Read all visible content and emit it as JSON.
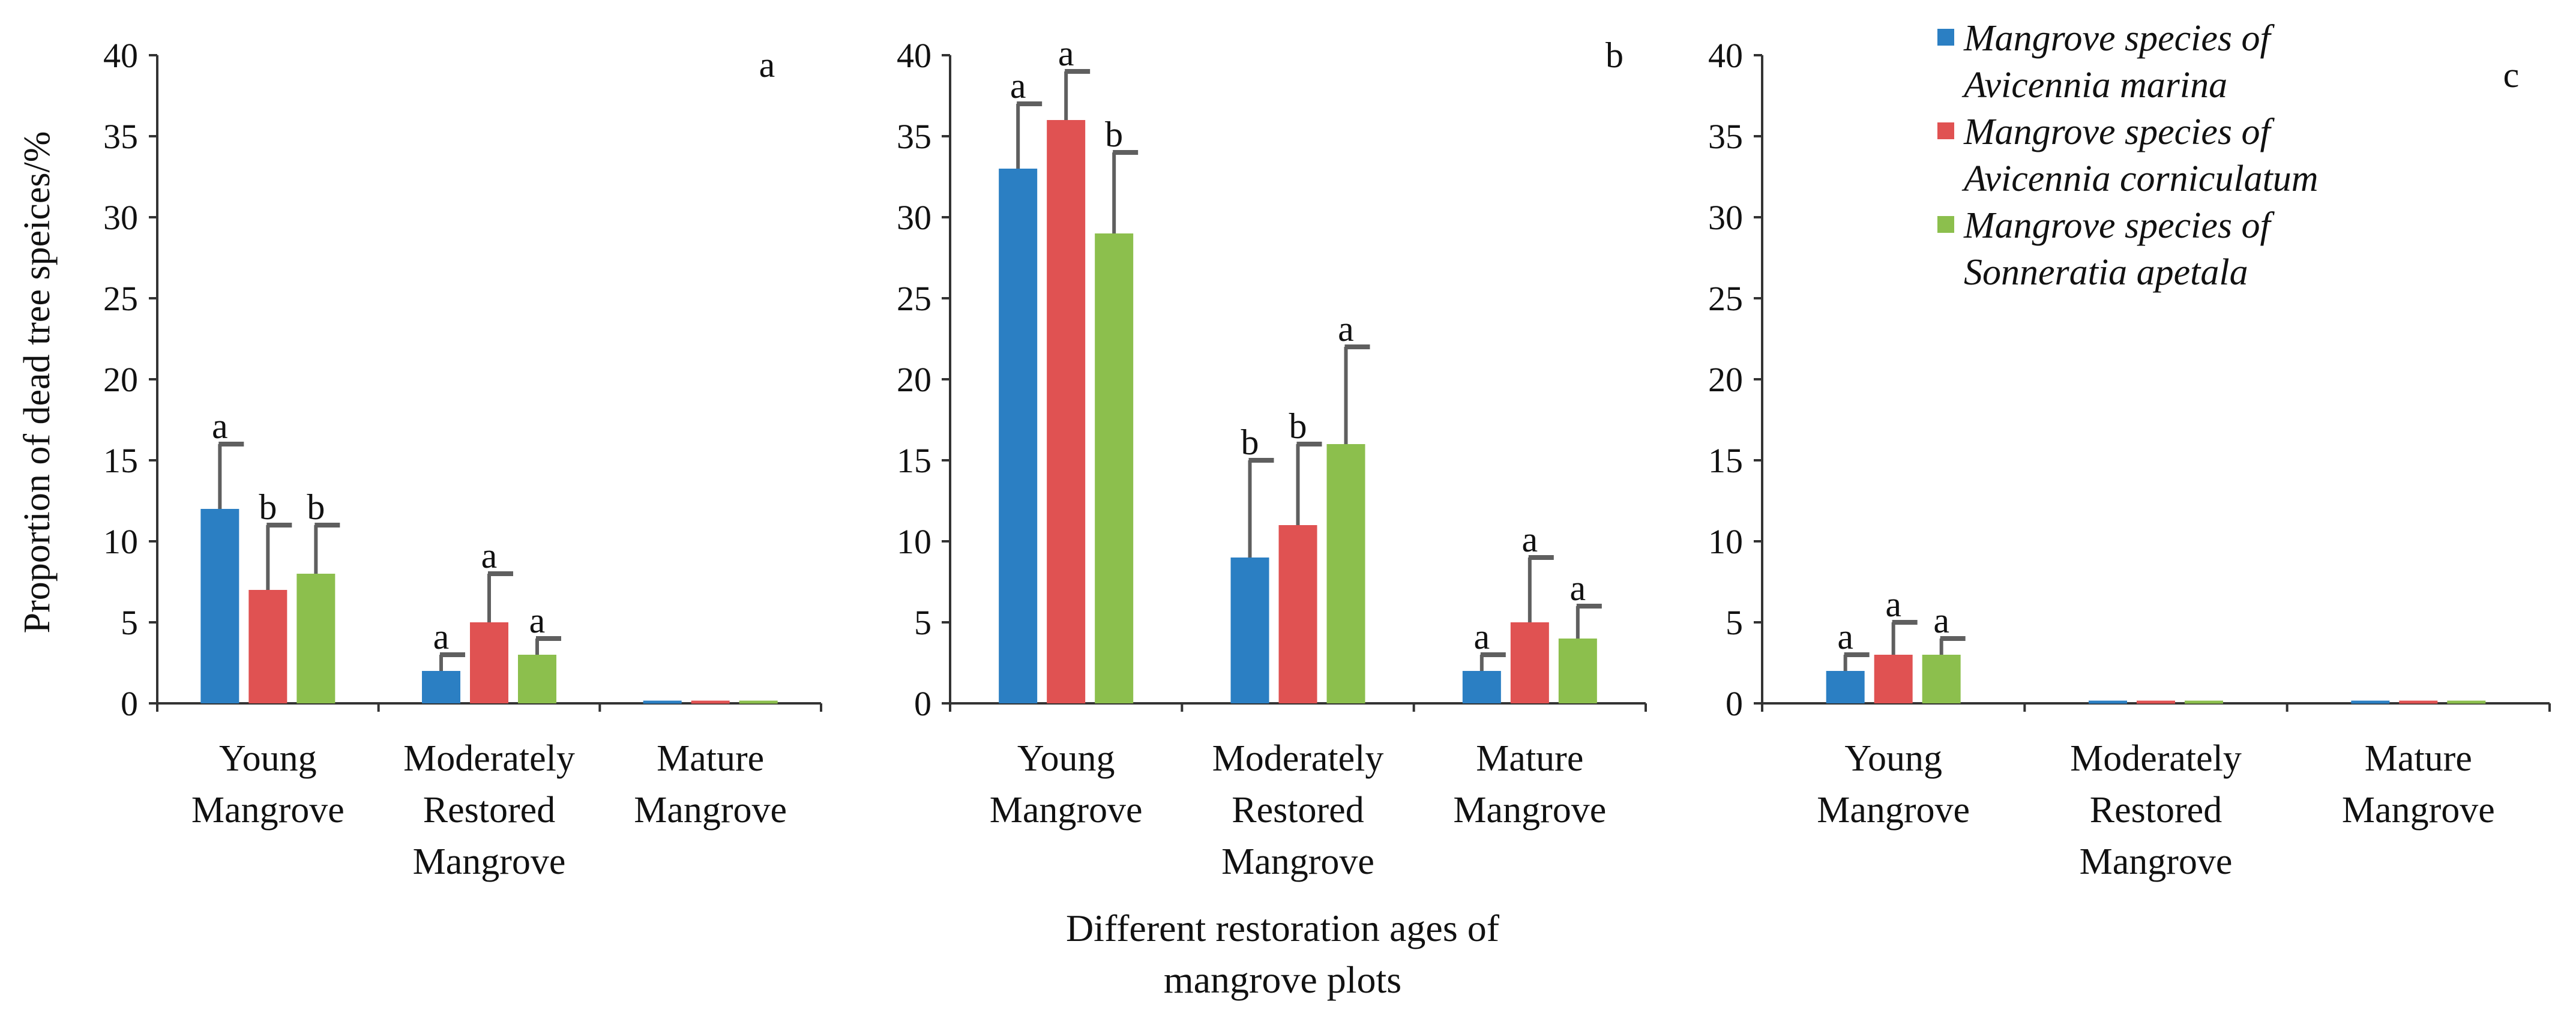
{
  "chart_data": [
    {
      "type": "bar",
      "panel_label": "a",
      "categories": [
        [
          "Young",
          "Mangrove"
        ],
        [
          "Moderately",
          "Restored",
          "Mangrove"
        ],
        [
          "Mature",
          "Mangrove"
        ]
      ],
      "ylim": [
        0,
        40
      ],
      "yticks": [
        "0",
        "5",
        "10",
        "15",
        "20",
        "25",
        "30",
        "35",
        "40"
      ],
      "series": [
        {
          "name": "Mangrove species of Avicennia marina",
          "color": "#2b7fc3",
          "values": [
            12,
            2,
            0
          ],
          "errors": [
            4,
            1,
            0
          ],
          "letters": [
            "a",
            "a",
            ""
          ]
        },
        {
          "name": "Mangrove species of Avicennia corniculatum",
          "color": "#e05252",
          "values": [
            7,
            5,
            0
          ],
          "errors": [
            4,
            3,
            0
          ],
          "letters": [
            "b",
            "a",
            ""
          ]
        },
        {
          "name": "Mangrove species of Sonneratia apetala",
          "color": "#8cbf4d",
          "values": [
            8,
            3,
            0
          ],
          "errors": [
            3,
            1,
            0
          ],
          "letters": [
            "b",
            "a",
            ""
          ]
        }
      ]
    },
    {
      "type": "bar",
      "panel_label": "b",
      "categories": [
        [
          "Young",
          "Mangrove"
        ],
        [
          "Moderately",
          "Restored",
          "Mangrove"
        ],
        [
          "Mature",
          "Mangrove"
        ]
      ],
      "ylim": [
        0,
        40
      ],
      "yticks": [
        "0",
        "5",
        "10",
        "15",
        "20",
        "25",
        "30",
        "35",
        "40"
      ],
      "series": [
        {
          "name": "Mangrove species of Avicennia marina",
          "color": "#2b7fc3",
          "values": [
            33,
            9,
            2
          ],
          "errors": [
            4,
            6,
            1
          ],
          "letters": [
            "a",
            "b",
            "a"
          ]
        },
        {
          "name": "Mangrove species of Avicennia corniculatum",
          "color": "#e05252",
          "values": [
            36,
            11,
            5
          ],
          "errors": [
            3,
            5,
            4
          ],
          "letters": [
            "a",
            "b",
            "a"
          ]
        },
        {
          "name": "Mangrove species of Sonneratia apetala",
          "color": "#8cbf4d",
          "values": [
            29,
            16,
            4
          ],
          "errors": [
            5,
            6,
            2
          ],
          "letters": [
            "b",
            "a",
            "a"
          ]
        }
      ]
    },
    {
      "type": "bar",
      "panel_label": "c",
      "categories": [
        [
          "Young",
          "Mangrove"
        ],
        [
          "Moderately",
          "Restored",
          "Mangrove"
        ],
        [
          "Mature",
          "Mangrove"
        ]
      ],
      "ylim": [
        0,
        40
      ],
      "yticks": [
        "0",
        "5",
        "10",
        "15",
        "20",
        "25",
        "30",
        "35",
        "40"
      ],
      "series": [
        {
          "name": "Mangrove species of Avicennia marina",
          "color": "#2b7fc3",
          "values": [
            2,
            0,
            0
          ],
          "errors": [
            1,
            0,
            0
          ],
          "letters": [
            "a",
            "",
            ""
          ]
        },
        {
          "name": "Mangrove species of Avicennia corniculatum",
          "color": "#e05252",
          "values": [
            3,
            0,
            0
          ],
          "errors": [
            2,
            0,
            0
          ],
          "letters": [
            "a",
            "",
            ""
          ]
        },
        {
          "name": "Mangrove species of Sonneratia apetala",
          "color": "#8cbf4d",
          "values": [
            3,
            0,
            0
          ],
          "errors": [
            1,
            0,
            0
          ],
          "letters": [
            "a",
            "",
            ""
          ]
        }
      ]
    }
  ],
  "ylabel": "Proportion of dead tree speices/%",
  "xlabel": [
    "Different restoration ages of",
    "mangrove plots"
  ],
  "legend": {
    "placement": "top-right",
    "items": [
      {
        "color": "#2b7fc3",
        "lines": [
          "Mangrove species of",
          "Avicennia marina"
        ]
      },
      {
        "color": "#e05252",
        "lines": [
          "Mangrove species of",
          "Avicennia corniculatum"
        ]
      },
      {
        "color": "#8cbf4d",
        "lines": [
          "Mangrove species of",
          "Sonneratia apetala"
        ]
      }
    ]
  }
}
